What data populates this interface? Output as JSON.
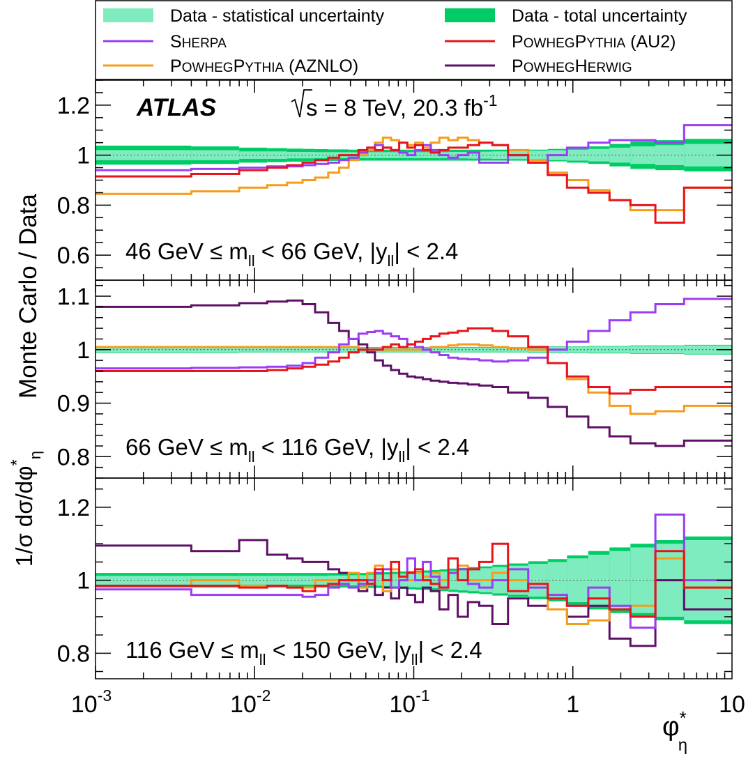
{
  "chart_data": {
    "type": "line",
    "experiment": "ATLAS",
    "energy_text": "s = 8 TeV, 20.3 fb",
    "energy_superscript": "-1",
    "ylabel": "Monte Carlo / Data",
    "ylabel_prefix": "1/σ dσ/dφ",
    "ylabel_star": "*",
    "ylabel_sub": "η",
    "xlabel": "φ",
    "xlabel_star": "*",
    "xlabel_sub": "η",
    "x_scale": "log",
    "xlim": [
      0.001,
      10
    ],
    "x_ticks": [
      {
        "value": 0.001,
        "base": "10",
        "exp": "-3"
      },
      {
        "value": 0.01,
        "base": "10",
        "exp": "-2"
      },
      {
        "value": 0.1,
        "base": "10",
        "exp": "-1"
      },
      {
        "value": 1,
        "base": "1",
        "exp": ""
      },
      {
        "value": 10,
        "base": "10",
        "exp": ""
      }
    ],
    "legend": {
      "placement": "top",
      "entries": [
        {
          "text": "Data - statistical uncertainty",
          "kind": "stat-band",
          "color": "#7fecc0"
        },
        {
          "text": "Data - total uncertainty",
          "kind": "total-band",
          "color": "#00cc66"
        },
        {
          "caps": [
            {
              "big": "S",
              "small": "HERPA"
            }
          ],
          "tail": "",
          "kind": "line",
          "color": "#9b3df5"
        },
        {
          "caps": [
            {
              "big": "P",
              "small": "OWHEG"
            },
            {
              "big": "P",
              "small": "YTHIA"
            }
          ],
          "tail": " (AU2)",
          "kind": "line",
          "color": "#e8141b"
        },
        {
          "caps": [
            {
              "big": "P",
              "small": "OWHEG"
            },
            {
              "big": "P",
              "small": "YTHIA"
            }
          ],
          "tail": " (AZNLO)",
          "kind": "line",
          "color": "#f59c1a"
        },
        {
          "caps": [
            {
              "big": "P",
              "small": "OWHEG"
            },
            {
              "big": "H",
              "small": "ERWIG"
            }
          ],
          "tail": "",
          "kind": "line",
          "color": "#5e1066"
        }
      ]
    },
    "panels": [
      {
        "label_pre": "46 GeV ≤ m",
        "label_sub1": "ll",
        "label_mid": " < 66 GeV, |y",
        "label_sub2": "ll",
        "label_post": "| < 2.4",
        "ylim": [
          0.5,
          1.3
        ],
        "y_ticks": [
          {
            "value": 0.6,
            "text": "0.6"
          },
          {
            "value": 0.8,
            "text": "0.8"
          },
          {
            "value": 1.0,
            "text": "1"
          },
          {
            "value": 1.2,
            "text": "1.2"
          }
        ],
        "bins": [
          0.001,
          0.004,
          0.008,
          0.012,
          0.016,
          0.02,
          0.024,
          0.029,
          0.034,
          0.039,
          0.045,
          0.051,
          0.057,
          0.064,
          0.072,
          0.081,
          0.091,
          0.102,
          0.114,
          0.128,
          0.145,
          0.165,
          0.189,
          0.219,
          0.258,
          0.312,
          0.391,
          0.524,
          0.695,
          0.918,
          1.25,
          1.7,
          2.3,
          3.3,
          5.0,
          10.0
        ],
        "stat": [
          0.02,
          0.02,
          0.015,
          0.015,
          0.013,
          0.013,
          0.012,
          0.012,
          0.012,
          0.012,
          0.012,
          0.012,
          0.012,
          0.012,
          0.012,
          0.012,
          0.012,
          0.012,
          0.012,
          0.012,
          0.012,
          0.013,
          0.013,
          0.014,
          0.014,
          0.015,
          0.016,
          0.018,
          0.02,
          0.022,
          0.025,
          0.03,
          0.035,
          0.04,
          0.045
        ],
        "total": [
          0.038,
          0.035,
          0.03,
          0.028,
          0.026,
          0.025,
          0.024,
          0.023,
          0.023,
          0.022,
          0.022,
          0.022,
          0.022,
          0.022,
          0.022,
          0.022,
          0.022,
          0.022,
          0.022,
          0.022,
          0.022,
          0.022,
          0.022,
          0.022,
          0.022,
          0.022,
          0.022,
          0.022,
          0.025,
          0.03,
          0.035,
          0.045,
          0.055,
          0.06,
          0.065
        ],
        "series": [
          {
            "color": "#f59c1a",
            "values": [
              0.845,
              0.855,
              0.87,
              0.88,
              0.89,
              0.9,
              0.91,
              0.93,
              0.95,
              0.98,
              1.0,
              1.02,
              1.05,
              1.07,
              1.06,
              1.05,
              1.04,
              1.05,
              1.03,
              1.05,
              1.07,
              1.06,
              1.07,
              1.06,
              1.05,
              1.04,
              1.02,
              0.98,
              0.93,
              0.9,
              0.86,
              0.82,
              0.78,
              0.78,
              0.87
            ]
          },
          {
            "color": "#9b3df5",
            "values": [
              0.94,
              0.945,
              0.95,
              0.955,
              0.955,
              0.96,
              0.965,
              0.97,
              0.98,
              0.99,
              1.01,
              1.03,
              1.04,
              1.03,
              1.02,
              1.01,
              1.0,
              1.02,
              1.04,
              1.02,
              1.0,
              0.99,
              1.0,
              1.01,
              0.97,
              0.97,
              1.0,
              0.97,
              1.0,
              1.03,
              1.05,
              1.06,
              1.06,
              1.05,
              1.12
            ]
          },
          {
            "color": "#e8141b",
            "values": [
              0.915,
              0.925,
              0.94,
              0.95,
              0.96,
              0.97,
              0.98,
              0.99,
              1.0,
              1.0,
              1.02,
              1.03,
              1.02,
              1.03,
              1.02,
              1.05,
              1.03,
              1.04,
              1.02,
              1.01,
              1.02,
              1.03,
              1.03,
              1.04,
              1.05,
              1.04,
              1.0,
              0.97,
              0.92,
              0.87,
              0.85,
              0.82,
              0.8,
              0.73,
              0.87
            ]
          }
        ]
      },
      {
        "label_pre": "66 GeV ≤ m",
        "label_sub1": "ll",
        "label_mid": " < 116 GeV, |y",
        "label_sub2": "ll",
        "label_post": "| < 2.4",
        "ylim": [
          0.76,
          1.13
        ],
        "y_ticks": [
          {
            "value": 0.8,
            "text": "0.8"
          },
          {
            "value": 0.9,
            "text": "0.9"
          },
          {
            "value": 1.0,
            "text": "1"
          },
          {
            "value": 1.1,
            "text": "1.1"
          }
        ],
        "bins": [
          0.001,
          0.004,
          0.008,
          0.012,
          0.016,
          0.02,
          0.024,
          0.029,
          0.034,
          0.039,
          0.045,
          0.051,
          0.057,
          0.064,
          0.072,
          0.081,
          0.091,
          0.102,
          0.114,
          0.128,
          0.145,
          0.165,
          0.189,
          0.219,
          0.258,
          0.312,
          0.391,
          0.524,
          0.695,
          0.918,
          1.25,
          1.7,
          2.3,
          3.3,
          5.0,
          10.0
        ],
        "stat": [
          0.005,
          0.005,
          0.004,
          0.004,
          0.004,
          0.004,
          0.004,
          0.004,
          0.004,
          0.004,
          0.004,
          0.004,
          0.004,
          0.004,
          0.004,
          0.004,
          0.004,
          0.004,
          0.004,
          0.004,
          0.004,
          0.004,
          0.004,
          0.004,
          0.004,
          0.004,
          0.004,
          0.005,
          0.005,
          0.005,
          0.006,
          0.006,
          0.007,
          0.007,
          0.008
        ],
        "total": [
          0.006,
          0.006,
          0.005,
          0.005,
          0.005,
          0.005,
          0.005,
          0.005,
          0.005,
          0.005,
          0.005,
          0.005,
          0.005,
          0.005,
          0.005,
          0.005,
          0.005,
          0.005,
          0.005,
          0.005,
          0.005,
          0.005,
          0.005,
          0.005,
          0.005,
          0.005,
          0.005,
          0.006,
          0.006,
          0.006,
          0.007,
          0.007,
          0.008,
          0.008,
          0.009
        ],
        "series": [
          {
            "color": "#5e1066",
            "values": [
              1.08,
              1.083,
              1.087,
              1.09,
              1.092,
              1.085,
              1.07,
              1.05,
              1.035,
              1.02,
              1.01,
              0.995,
              0.98,
              0.97,
              0.962,
              0.955,
              0.95,
              0.948,
              0.945,
              0.942,
              0.94,
              0.938,
              0.937,
              0.935,
              0.933,
              0.93,
              0.92,
              0.91,
              0.893,
              0.875,
              0.855,
              0.838,
              0.825,
              0.82,
              0.83
            ]
          },
          {
            "color": "#f59c1a",
            "values": [
              1.005,
              1.005,
              1.005,
              1.005,
              1.005,
              1.005,
              1.005,
              1.005,
              1.005,
              1.005,
              1.0,
              1.0,
              1.0,
              1.0,
              1.0,
              1.0,
              1.0,
              1.0,
              1.0,
              1.005,
              1.005,
              1.008,
              1.01,
              1.01,
              1.008,
              1.005,
              1.003,
              1.0,
              0.975,
              0.945,
              0.92,
              0.895,
              0.88,
              0.885,
              0.895
            ]
          },
          {
            "color": "#9b3df5",
            "values": [
              0.965,
              0.966,
              0.967,
              0.968,
              0.97,
              0.975,
              0.985,
              0.995,
              1.01,
              1.02,
              1.03,
              1.033,
              1.035,
              1.03,
              1.025,
              1.02,
              1.01,
              1.005,
              1.0,
              0.995,
              0.99,
              0.985,
              0.983,
              0.982,
              0.98,
              0.978,
              0.98,
              0.985,
              1.0,
              1.015,
              1.035,
              1.055,
              1.07,
              1.085,
              1.095
            ]
          },
          {
            "color": "#e8141b",
            "values": [
              0.96,
              0.96,
              0.96,
              0.962,
              0.965,
              0.968,
              0.972,
              0.978,
              0.985,
              0.995,
              1.0,
              1.0,
              1.0,
              1.005,
              1.01,
              1.005,
              1.01,
              1.015,
              1.02,
              1.025,
              1.03,
              1.032,
              1.035,
              1.04,
              1.04,
              1.035,
              1.025,
              1.005,
              0.975,
              0.95,
              0.93,
              0.918,
              0.925,
              0.93,
              0.93
            ]
          }
        ]
      },
      {
        "label_pre": "116 GeV ≤ m",
        "label_sub1": "ll",
        "label_mid": " < 150 GeV, |y",
        "label_sub2": "ll",
        "label_post": "| < 2.4",
        "ylim": [
          0.73,
          1.28
        ],
        "y_ticks": [
          {
            "value": 0.8,
            "text": "0.8"
          },
          {
            "value": 1.0,
            "text": "1"
          },
          {
            "value": 1.2,
            "text": "1.2"
          }
        ],
        "bins": [
          0.001,
          0.004,
          0.008,
          0.012,
          0.016,
          0.02,
          0.024,
          0.029,
          0.034,
          0.039,
          0.045,
          0.051,
          0.057,
          0.064,
          0.072,
          0.081,
          0.091,
          0.102,
          0.114,
          0.128,
          0.145,
          0.165,
          0.189,
          0.219,
          0.258,
          0.312,
          0.391,
          0.524,
          0.695,
          0.918,
          1.25,
          1.7,
          2.3,
          3.3,
          5.0,
          10.0
        ],
        "stat": [
          0.012,
          0.012,
          0.012,
          0.012,
          0.012,
          0.012,
          0.012,
          0.013,
          0.013,
          0.014,
          0.014,
          0.015,
          0.015,
          0.016,
          0.017,
          0.018,
          0.019,
          0.02,
          0.021,
          0.022,
          0.024,
          0.026,
          0.028,
          0.03,
          0.033,
          0.036,
          0.04,
          0.045,
          0.05,
          0.06,
          0.07,
          0.08,
          0.09,
          0.1,
          0.11
        ],
        "total": [
          0.02,
          0.02,
          0.02,
          0.02,
          0.02,
          0.02,
          0.02,
          0.02,
          0.02,
          0.02,
          0.02,
          0.021,
          0.021,
          0.022,
          0.023,
          0.024,
          0.025,
          0.026,
          0.027,
          0.028,
          0.03,
          0.032,
          0.034,
          0.036,
          0.038,
          0.042,
          0.046,
          0.052,
          0.058,
          0.068,
          0.08,
          0.09,
          0.1,
          0.11,
          0.12
        ],
        "series": [
          {
            "color": "#5e1066",
            "values": [
              1.095,
              1.08,
              1.11,
              1.07,
              1.06,
              1.05,
              1.05,
              1.03,
              1.02,
              1.0,
              0.97,
              0.99,
              0.96,
              0.98,
              0.95,
              0.98,
              0.96,
              0.94,
              0.98,
              0.97,
              0.92,
              0.96,
              0.9,
              0.94,
              0.93,
              0.88,
              0.95,
              0.93,
              0.92,
              0.9,
              0.93,
              0.84,
              0.82,
              1.0,
              0.92
            ]
          },
          {
            "color": "#f59c1a",
            "values": [
              0.985,
              1.0,
              0.985,
              0.985,
              0.98,
              0.98,
              1.0,
              1.0,
              1.0,
              1.02,
              0.98,
              1.02,
              1.04,
              0.97,
              1.03,
              1.0,
              1.0,
              1.02,
              1.01,
              1.02,
              1.0,
              1.02,
              1.04,
              1.0,
              1.0,
              1.02,
              1.0,
              0.99,
              0.92,
              0.88,
              0.89,
              0.92,
              0.93,
              1.06,
              0.98
            ]
          },
          {
            "color": "#9b3df5",
            "values": [
              0.975,
              0.96,
              0.96,
              0.96,
              0.96,
              0.955,
              0.96,
              0.98,
              0.99,
              0.98,
              0.99,
              1.0,
              1.02,
              1.03,
              0.98,
              1.0,
              1.06,
              1.0,
              1.05,
              1.01,
              0.98,
              1.02,
              1.03,
              0.99,
              0.98,
              1.0,
              1.03,
              0.98,
              0.96,
              0.93,
              0.98,
              0.93,
              0.87,
              1.18,
              1.0
            ]
          },
          {
            "color": "#e8141b",
            "values": [
              0.985,
              0.985,
              0.98,
              0.985,
              0.98,
              0.97,
              0.985,
              0.99,
              1.0,
              1.0,
              1.0,
              0.99,
              1.03,
              1.0,
              1.05,
              1.01,
              1.02,
              1.03,
              1.0,
              0.99,
              0.98,
              1.06,
              1.0,
              1.03,
              1.05,
              1.1,
              0.97,
              0.99,
              0.95,
              0.93,
              0.95,
              0.92,
              0.9,
              1.08,
              0.98
            ]
          }
        ]
      }
    ]
  }
}
